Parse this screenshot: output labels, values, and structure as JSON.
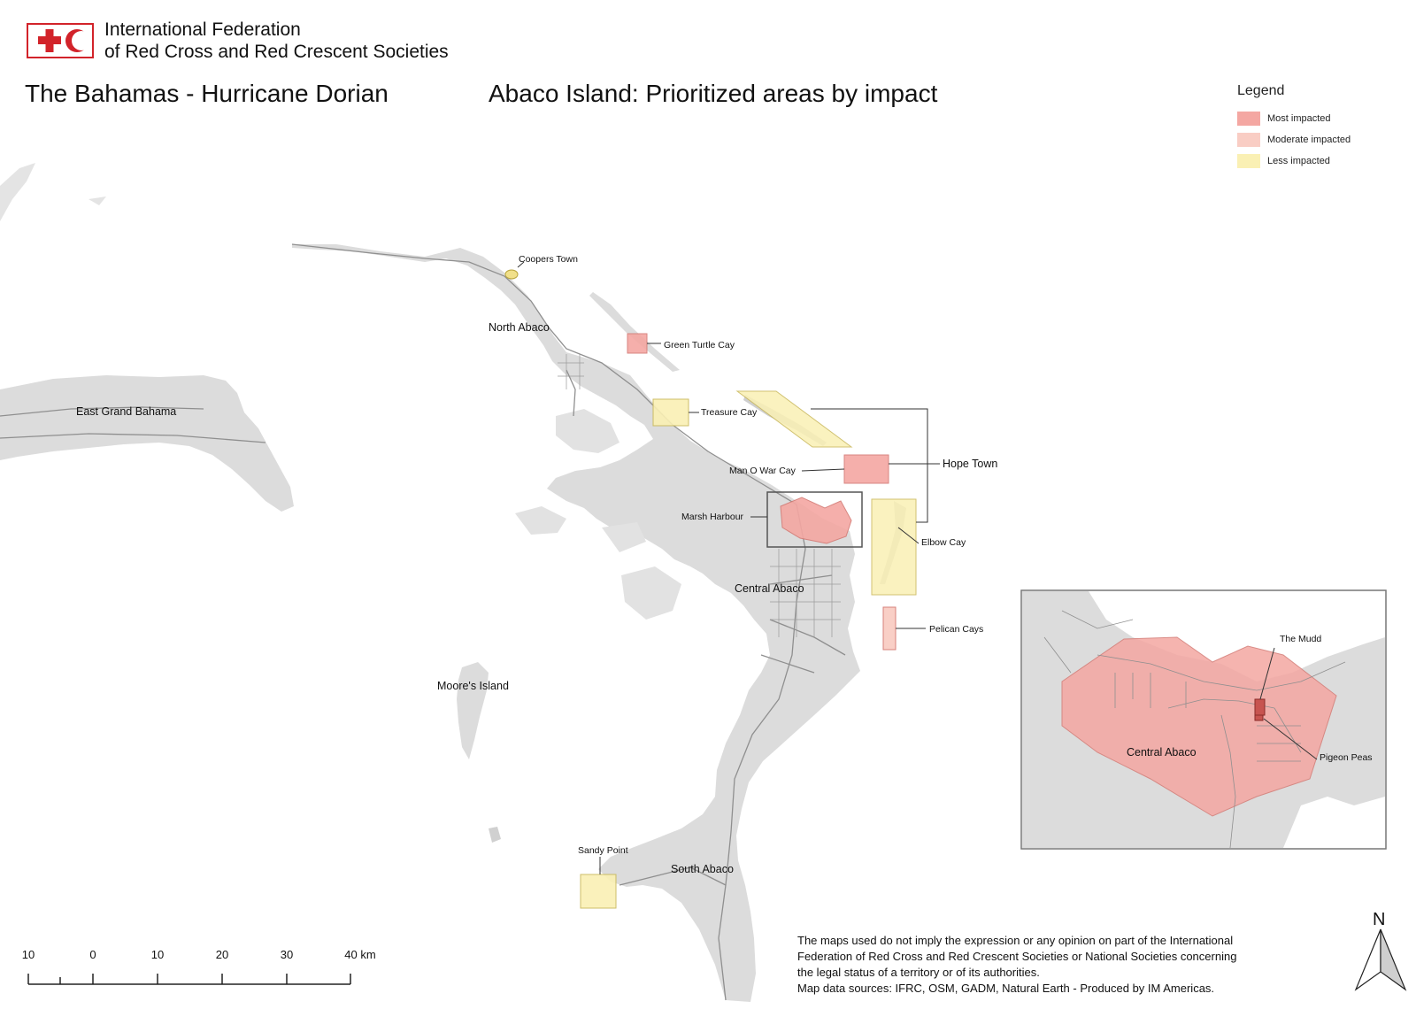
{
  "organization": {
    "name_line1": "International Federation",
    "name_line2": "of Red Cross and Red Crescent Societies",
    "logo_icon": "red-cross-red-crescent-icon"
  },
  "titles": {
    "left": "The Bahamas - Hurricane Dorian",
    "right": "Abaco Island: Prioritized areas by impact"
  },
  "legend": {
    "title": "Legend",
    "items": [
      {
        "label": "Most impacted",
        "color": "#f4a7a2"
      },
      {
        "label": "Moderate impacted",
        "color": "#f9cdc4"
      },
      {
        "label": "Less impacted",
        "color": "#faf0b4"
      }
    ]
  },
  "regions": {
    "east_grand_bahama": "East Grand Bahama",
    "north_abaco": "North Abaco",
    "central_abaco": "Central Abaco",
    "south_abaco": "South Abaco",
    "moores_island": "Moore's Island"
  },
  "places": {
    "coopers_town": "Coopers Town",
    "green_turtle_cay": "Green Turtle Cay",
    "treasure_cay": "Treasure Cay",
    "man_o_war_cay": "Man O War Cay",
    "hope_town": "Hope Town",
    "marsh_harbour": "Marsh Harbour",
    "elbow_cay": "Elbow Cay",
    "pelican_cays": "Pelican Cays",
    "sandy_point": "Sandy Point"
  },
  "inset": {
    "region_label": "Central Abaco",
    "the_mudd": "The Mudd",
    "pigeon_peas": "Pigeon Peas"
  },
  "scale_bar": {
    "labels": [
      "10",
      "0",
      "10",
      "20",
      "30",
      "40 km"
    ]
  },
  "north_arrow": "N",
  "disclaimer": {
    "line1": "The maps used do not imply the expression or any opinion on part of the International",
    "line2": "Federation of Red Cross and Red Crescent Societies or National Societies concerning",
    "line3": "the legal status of a territory or of its authorities.",
    "line4": "Map data sources: IFRC, OSM, GADM, Natural Earth - Produced by IM Americas."
  },
  "colors": {
    "land": "#dcdcdc",
    "road": "#8f8f8f",
    "most": "#f4a7a2",
    "moderate": "#f9cdc4",
    "less": "#faf0b4",
    "ifrc_red": "#d2232a"
  }
}
